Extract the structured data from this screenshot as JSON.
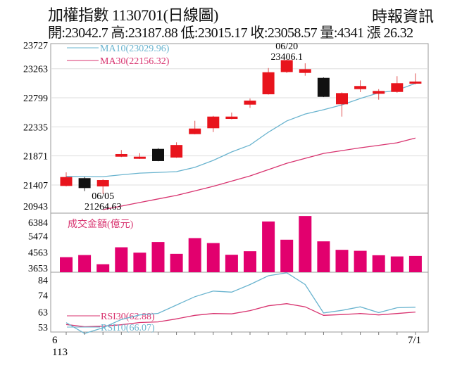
{
  "header": {
    "title": "加權指數 1130701(日線圖)",
    "source": "時報資訊",
    "summary": "開:23042.7 高:23187.88 低:23015.17 收:23058.57 量:4341 漲 26.32"
  },
  "colors": {
    "up": "#e8141c",
    "down": "#111111",
    "ma10": "#6ab4cf",
    "ma30": "#d8336f",
    "volume": "#e2006e",
    "grid": "#dddddd"
  },
  "chart_data": [
    {
      "type": "candlestick",
      "title": "",
      "yticks": [
        "23727",
        "23263",
        "22799",
        "22335",
        "21871",
        "21407",
        "20943"
      ],
      "ylim": [
        20943,
        23727
      ],
      "grid": true,
      "legend": [
        {
          "label": "MA10(23029.96)",
          "key": "ma10"
        },
        {
          "label": "MA30(22156.32)",
          "key": "ma30"
        }
      ],
      "annotations": [
        {
          "date": "06/20",
          "value": "23406.1",
          "index": 12,
          "position": "above"
        },
        {
          "date": "06/05",
          "value": "21264.63",
          "index": 2,
          "position": "below"
        }
      ],
      "candles": [
        {
          "o": 21392,
          "h": 21609,
          "l": 21384,
          "c": 21534
        },
        {
          "o": 21516,
          "h": 21534,
          "l": 21309,
          "c": 21358
        },
        {
          "o": 21384,
          "h": 21497,
          "l": 21264.63,
          "c": 21485
        },
        {
          "o": 21859,
          "h": 21965,
          "l": 21853,
          "c": 21901
        },
        {
          "o": 21826,
          "h": 21915,
          "l": 21822,
          "c": 21859
        },
        {
          "o": 21983,
          "h": 21995,
          "l": 21785,
          "c": 21789
        },
        {
          "o": 21845,
          "h": 22088,
          "l": 21840,
          "c": 22045
        },
        {
          "o": 22219,
          "h": 22432,
          "l": 22215,
          "c": 22308
        },
        {
          "o": 22313,
          "h": 22510,
          "l": 22252,
          "c": 22499
        },
        {
          "o": 22462,
          "h": 22563,
          "l": 22455,
          "c": 22499
        },
        {
          "o": 22690,
          "h": 22788,
          "l": 22639,
          "c": 22754
        },
        {
          "o": 22855,
          "h": 23274,
          "l": 22850,
          "c": 23207
        },
        {
          "o": 23210,
          "h": 23406.1,
          "l": 23195,
          "c": 23400
        },
        {
          "o": 23196,
          "h": 23349,
          "l": 23151,
          "c": 23256
        },
        {
          "o": 23117,
          "h": 23125,
          "l": 22810,
          "c": 22814
        },
        {
          "o": 22695,
          "h": 22885,
          "l": 22499,
          "c": 22874
        },
        {
          "o": 22937,
          "h": 23077,
          "l": 22889,
          "c": 22987
        },
        {
          "o": 22863,
          "h": 22937,
          "l": 22769,
          "c": 22908
        },
        {
          "o": 22892,
          "h": 23144,
          "l": 22880,
          "c": 23032
        },
        {
          "o": 23042.7,
          "h": 23187.88,
          "l": 23015.17,
          "c": 23058.57
        }
      ],
      "ma10": [
        21545,
        21542,
        21540,
        21570,
        21597,
        21608,
        21620,
        21688,
        21800,
        21935,
        22045,
        22250,
        22430,
        22540,
        22608,
        22686,
        22788,
        22878,
        22920,
        23029.96
      ],
      "ma30": [
        null,
        null,
        21014,
        21070,
        21127,
        21184,
        21240,
        21312,
        21385,
        21468,
        21552,
        21653,
        21754,
        21832,
        21911,
        21956,
        22001,
        22040,
        22080,
        22156.32
      ]
    },
    {
      "type": "bar",
      "legend": "成交金額(億元)",
      "yticks": [
        "6384",
        "5474",
        "4563",
        "3653"
      ],
      "values": [
        4272,
        4393,
        3869,
        4836,
        4530,
        5135,
        4462,
        5360,
        5078,
        4409,
        4611,
        6310,
        5268,
        6620,
        5175,
        4691,
        4635,
        4381,
        4313,
        4341
      ]
    },
    {
      "type": "line",
      "yticks": [
        "84",
        "74",
        "63",
        "53"
      ],
      "xticks": [
        {
          "label": "6",
          "sub": "113"
        },
        {
          "label": "7/1"
        }
      ],
      "series": [
        {
          "name": "RSI30(62.88)",
          "key": "ma30",
          "values": [
            54.7,
            53.2,
            53.6,
            54.5,
            56,
            56.4,
            58.4,
            60.7,
            61.9,
            61.7,
            63.8,
            67,
            68.4,
            66.3,
            60.7,
            61.2,
            61.9,
            61,
            61.9,
            62.88
          ]
        },
        {
          "name": "RSI10(66.07)",
          "key": "ma10",
          "values": [
            55.9,
            48.8,
            52.5,
            58,
            61,
            62,
            67.5,
            73,
            76.7,
            76,
            81,
            86.8,
            88.7,
            81,
            62.3,
            64,
            66.3,
            62.5,
            65.7,
            66.07
          ]
        }
      ]
    }
  ]
}
